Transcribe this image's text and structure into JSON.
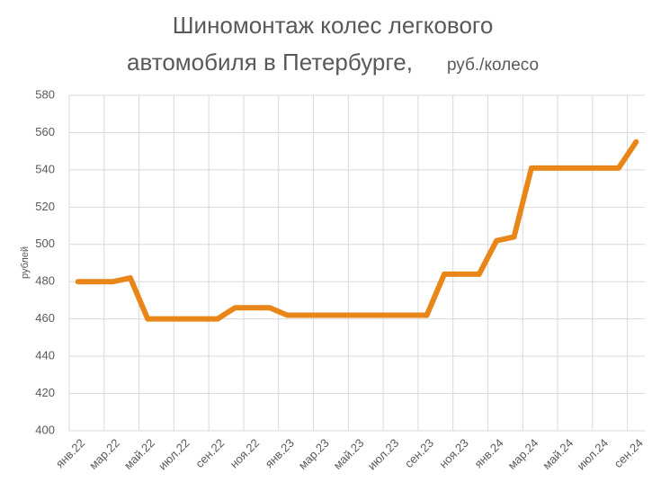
{
  "chart_data": {
    "type": "line",
    "title": "Шиномонтаж колес легкового",
    "title_line2": "автомобиля в Петербурге,",
    "subtitle": "руб./колесо",
    "y_label": "рублей",
    "categories": [
      "янв.22",
      null,
      "мар.22",
      null,
      "май.22",
      null,
      "июл.22",
      null,
      "сен.22",
      null,
      "ноя.22",
      null,
      "янв.23",
      null,
      "мар.23",
      null,
      "май.23",
      null,
      "июл.23",
      null,
      "сен.23",
      null,
      "ноя.23",
      null,
      "янв.24",
      null,
      "мар.24",
      null,
      "май.24",
      null,
      "июл.24",
      null,
      "сен.24"
    ],
    "series": [
      {
        "name": "руб./колесо",
        "color": "#e8861a",
        "values": [
          480,
          480,
          480,
          482,
          460,
          460,
          460,
          460,
          460,
          466,
          466,
          466,
          462,
          462,
          462,
          462,
          462,
          462,
          462,
          462,
          462,
          484,
          484,
          484,
          502,
          504,
          541,
          541,
          541,
          541,
          541,
          541,
          555
        ]
      }
    ],
    "ylim": [
      400,
      580
    ],
    "yticks": [
      400,
      420,
      440,
      460,
      480,
      500,
      520,
      540,
      560,
      580
    ],
    "grid": true
  }
}
